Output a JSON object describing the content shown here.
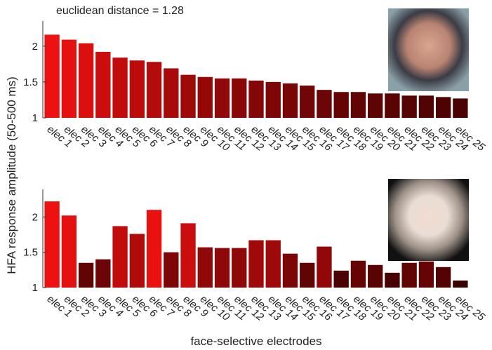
{
  "ylabel": "HFA response amplitude (50-500 ms)",
  "xlabel": "face-selective electrodes",
  "chart_data": [
    {
      "type": "bar",
      "annotation": "euclidean distance = 1.28",
      "categories": [
        "elec 1",
        "elec 2",
        "elec 3",
        "elec 4",
        "elec 5",
        "elec 6",
        "elec 7",
        "elec 8",
        "elec 9",
        "elec 10",
        "elec 11",
        "elec 12",
        "elec 13",
        "elec 14",
        "elec 15",
        "elec 16",
        "elec 17",
        "elec 18",
        "elec 19",
        "elec 20",
        "elec 21",
        "elec 22",
        "elec 23",
        "elec 24",
        "elec 25"
      ],
      "values": [
        2.16,
        2.09,
        2.04,
        1.92,
        1.84,
        1.8,
        1.78,
        1.69,
        1.6,
        1.57,
        1.55,
        1.55,
        1.52,
        1.5,
        1.48,
        1.45,
        1.39,
        1.36,
        1.36,
        1.34,
        1.34,
        1.31,
        1.31,
        1.29,
        1.27
      ],
      "colors": [
        "#ee1111",
        "#e51010",
        "#dc0f0f",
        "#cc0d0d",
        "#c20c0c",
        "#bb0b0b",
        "#b30b0b",
        "#a80a0a",
        "#9e0909",
        "#960808",
        "#900808",
        "#8a0707",
        "#840707",
        "#7e0606",
        "#780606",
        "#720505",
        "#6c0505",
        "#660404",
        "#620404",
        "#5e0404",
        "#5a0303",
        "#560303",
        "#520303",
        "#4e0202",
        "#4a0202"
      ],
      "ylim": [
        1,
        2.35
      ],
      "yticks": [
        1,
        1.5,
        2
      ]
    },
    {
      "type": "bar",
      "categories": [
        "elec 1",
        "elec 2",
        "elec 3",
        "elec 4",
        "elec 5",
        "elec 6",
        "elec 7",
        "elec 8",
        "elec 9",
        "elec 10",
        "elec 11",
        "elec 12",
        "elec 13",
        "elec 14",
        "elec 15",
        "elec 16",
        "elec 17",
        "elec 18",
        "elec 19",
        "elec 20",
        "elec 21",
        "elec 22",
        "elec 23",
        "elec 24",
        "elec 25"
      ],
      "values": [
        2.22,
        2.02,
        1.35,
        1.4,
        1.87,
        1.76,
        2.1,
        1.5,
        1.91,
        1.57,
        1.56,
        1.56,
        1.67,
        1.67,
        1.48,
        1.35,
        1.58,
        1.24,
        1.38,
        1.32,
        1.21,
        1.35,
        1.37,
        1.29,
        1.1
      ],
      "colors": [
        "#ee1111",
        "#e51010",
        "#600404",
        "#6c0505",
        "#c20c0c",
        "#b00b0b",
        "#ea1111",
        "#7e0606",
        "#cc0d0d",
        "#900808",
        "#8e0808",
        "#8e0808",
        "#a00909",
        "#a00909",
        "#7a0606",
        "#600404",
        "#920808",
        "#4a0202",
        "#660404",
        "#5a0303",
        "#460202",
        "#600404",
        "#640404",
        "#540303",
        "#3a0101"
      ],
      "ylim": [
        1,
        2.39
      ],
      "yticks": [
        1,
        1.5,
        2
      ]
    }
  ]
}
